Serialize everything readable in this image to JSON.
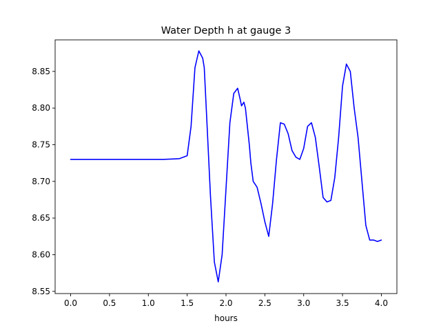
{
  "chart_data": {
    "type": "line",
    "title": "Water Depth h at gauge 3",
    "xlabel": "hours",
    "ylabel": "",
    "xlim": [
      -0.2,
      4.2
    ],
    "ylim": [
      8.547,
      8.893
    ],
    "xticks": [
      0.0,
      0.5,
      1.0,
      1.5,
      2.0,
      2.5,
      3.0,
      3.5,
      4.0
    ],
    "xtick_labels": [
      "0.0",
      "0.5",
      "1.0",
      "1.5",
      "2.0",
      "2.5",
      "3.0",
      "3.5",
      "4.0"
    ],
    "yticks": [
      8.55,
      8.6,
      8.65,
      8.7,
      8.75,
      8.8,
      8.85
    ],
    "ytick_labels": [
      "8.55",
      "8.60",
      "8.65",
      "8.70",
      "8.75",
      "8.80",
      "8.85"
    ],
    "grid": false,
    "series": [
      {
        "color": "#0000ff",
        "x": [
          0.0,
          0.5,
          1.0,
          1.2,
          1.4,
          1.5,
          1.55,
          1.6,
          1.65,
          1.7,
          1.72,
          1.75,
          1.8,
          1.85,
          1.9,
          1.95,
          2.0,
          2.05,
          2.1,
          2.15,
          2.18,
          2.2,
          2.23,
          2.25,
          2.27,
          2.3,
          2.32,
          2.35,
          2.4,
          2.45,
          2.5,
          2.55,
          2.6,
          2.65,
          2.7,
          2.75,
          2.8,
          2.85,
          2.9,
          2.95,
          3.0,
          3.05,
          3.1,
          3.15,
          3.2,
          3.25,
          3.3,
          3.35,
          3.4,
          3.45,
          3.5,
          3.55,
          3.6,
          3.65,
          3.7,
          3.75,
          3.8,
          3.85,
          3.9,
          3.95,
          4.0
        ],
        "y": [
          8.73,
          8.73,
          8.73,
          8.73,
          8.731,
          8.735,
          8.775,
          8.855,
          8.878,
          8.868,
          8.855,
          8.79,
          8.68,
          8.59,
          8.563,
          8.6,
          8.69,
          8.78,
          8.82,
          8.827,
          8.813,
          8.803,
          8.808,
          8.8,
          8.78,
          8.75,
          8.725,
          8.7,
          8.692,
          8.67,
          8.645,
          8.625,
          8.67,
          8.73,
          8.78,
          8.778,
          8.765,
          8.742,
          8.733,
          8.73,
          8.745,
          8.775,
          8.78,
          8.76,
          8.72,
          8.678,
          8.672,
          8.674,
          8.705,
          8.76,
          8.83,
          8.86,
          8.85,
          8.8,
          8.76,
          8.7,
          8.64,
          8.62,
          8.62,
          8.618,
          8.62
        ]
      }
    ]
  }
}
